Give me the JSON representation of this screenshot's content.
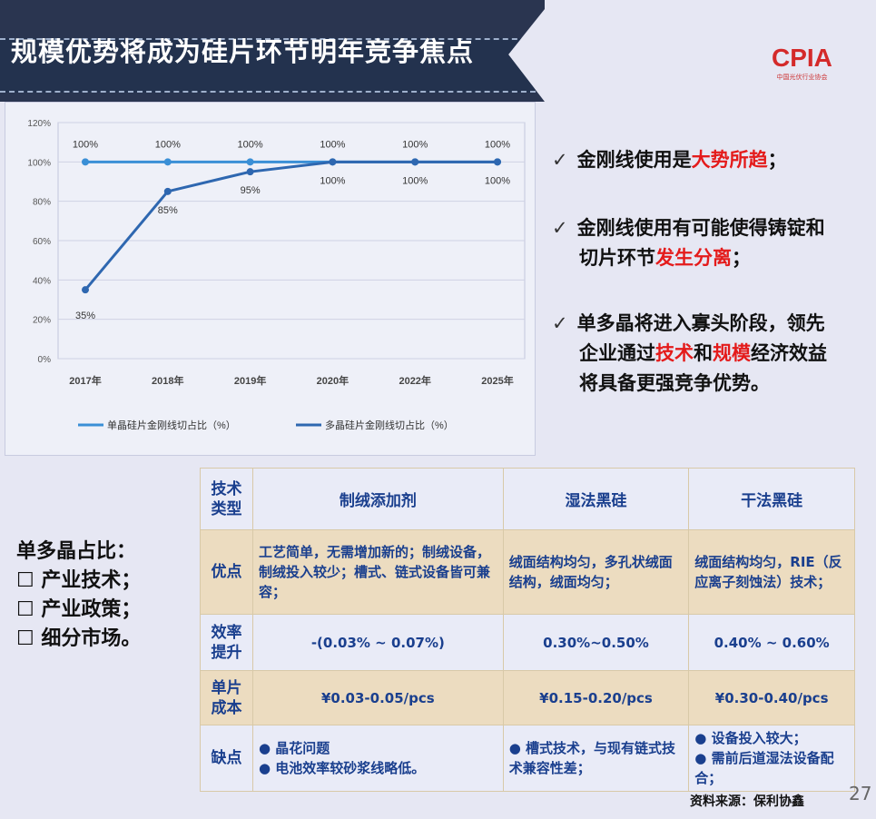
{
  "title": "规模优势将成为硅片环节明年竞争焦点",
  "logo": {
    "text": "CPIA",
    "subtitle": "中国光伏行业协会"
  },
  "chart_data": {
    "type": "line",
    "categories": [
      "2017年",
      "2018年",
      "2019年",
      "2020年",
      "2022年",
      "2025年"
    ],
    "ylim": [
      0,
      120
    ],
    "yticks": [
      "0%",
      "20%",
      "40%",
      "60%",
      "80%",
      "100%",
      "120%"
    ],
    "grid": true,
    "legend": "bottom",
    "series": [
      {
        "name": "单晶硅片金刚线切占比（%）",
        "values": [
          100,
          100,
          100,
          100,
          100,
          100
        ],
        "labels": [
          "100%",
          "100%",
          "100%",
          "100%",
          "100%",
          "100%"
        ],
        "color": "#3a8fd6"
      },
      {
        "name": "多晶硅片金刚线切占比（%）",
        "values": [
          35,
          85,
          95,
          100,
          100,
          100
        ],
        "labels": [
          "35%",
          "85%",
          "95%",
          "100%",
          "100%",
          "100%"
        ],
        "color": "#2e67b0"
      }
    ]
  },
  "points": [
    {
      "parts": [
        {
          "t": "金刚线使用是"
        },
        {
          "t": "大势所趋",
          "red": true
        },
        {
          "t": "；"
        }
      ]
    },
    {
      "parts": [
        {
          "t": "金刚线使用有可能使得铸锭和切片环节"
        },
        {
          "t": "发生分离",
          "red": true
        },
        {
          "t": "；"
        }
      ]
    },
    {
      "parts": [
        {
          "t": "单多晶将进入寡头阶段，领先企业通过"
        },
        {
          "t": "技术",
          "red": true
        },
        {
          "t": "和"
        },
        {
          "t": "规模",
          "red": true
        },
        {
          "t": "经济效益将具备更强竞争优势。"
        }
      ]
    }
  ],
  "check": "✓",
  "left": {
    "heading": "单多晶占比：",
    "items": [
      "☐ 产业技术；",
      "☐ 产业政策；",
      "☐ 细分市场。"
    ]
  },
  "table": {
    "header": [
      "技术类型",
      "制绒添加剂",
      "湿法黑硅",
      "干法黑硅"
    ],
    "rows": [
      {
        "label": "优点",
        "cells": [
          "工艺简单，无需增加新的；制绒设备，制绒投入较少；槽式、链式设备皆可兼容；",
          "绒面结构均匀，多孔状绒面结构，绒面均匀；",
          "绒面结构均匀，RIE（反应离子刻蚀法）技术；"
        ]
      },
      {
        "label": "效率提升",
        "cells": [
          "-(0.03% ~ 0.07%)",
          "0.30%~0.50%",
          "0.40% ~ 0.60%"
        ]
      },
      {
        "label": "单片成本",
        "cells": [
          "¥0.03-0.05/pcs",
          "¥0.15-0.20/pcs",
          "¥0.30-0.40/pcs"
        ]
      },
      {
        "label": "缺点",
        "cells": [
          "● 晶花问题\n● 电池效率较砂浆线略低。",
          "● 槽式技术，与现有链式技术兼容性差；",
          "● 设备投入较大；\n● 需前后道湿法设备配合；"
        ]
      }
    ]
  },
  "source": "资料来源：保利协鑫",
  "page": "27"
}
